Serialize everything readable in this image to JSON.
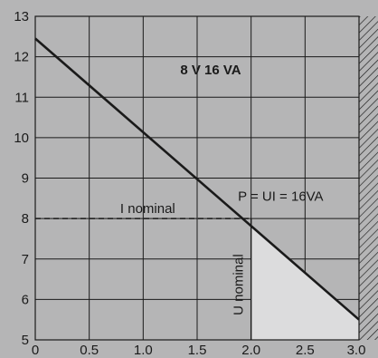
{
  "chart_data": {
    "type": "line",
    "title": "8 V 16 VA",
    "xlabel": "",
    "ylabel": "",
    "xlim": [
      0,
      3.0
    ],
    "ylim": [
      5,
      13
    ],
    "grid": true,
    "x_ticks": [
      "0",
      "0.5",
      "1.0",
      "1.5",
      "2.0",
      "2.5",
      "3.0"
    ],
    "x_tick_values": [
      0,
      0.5,
      1.0,
      1.5,
      2.0,
      2.5,
      3.0
    ],
    "y_ticks": [
      "5",
      "6",
      "7",
      "8",
      "9",
      "10",
      "11",
      "12",
      "13"
    ],
    "y_tick_values": [
      5,
      6,
      7,
      8,
      9,
      10,
      11,
      12,
      13
    ],
    "series": [
      {
        "x": [
          0,
          3.0
        ],
        "y": [
          12.45,
          5.5
        ]
      }
    ],
    "reference_lines": [
      {
        "label": "I nominal",
        "y": 8.0,
        "x_range": [
          0,
          2.0
        ],
        "style": "dashed"
      },
      {
        "label": "U nominal",
        "x": 2.0,
        "y_range": [
          5,
          8.0
        ],
        "style": "solid"
      }
    ],
    "annotations": [
      {
        "text": "P = UI = 16VA",
        "x": 2.5,
        "y": 8.55
      }
    ],
    "shaded_region": {
      "x_range": [
        2.0,
        3.0
      ],
      "y_range": [
        5,
        8.0
      ],
      "upper": "line",
      "color": "#dcdcdd"
    },
    "colors": {
      "background": "#b5b5b6",
      "line": "#1a1a1a",
      "grid": "#1a1a1a",
      "hatch": "#1a1a1a",
      "shade": "#dcdcdd"
    }
  }
}
